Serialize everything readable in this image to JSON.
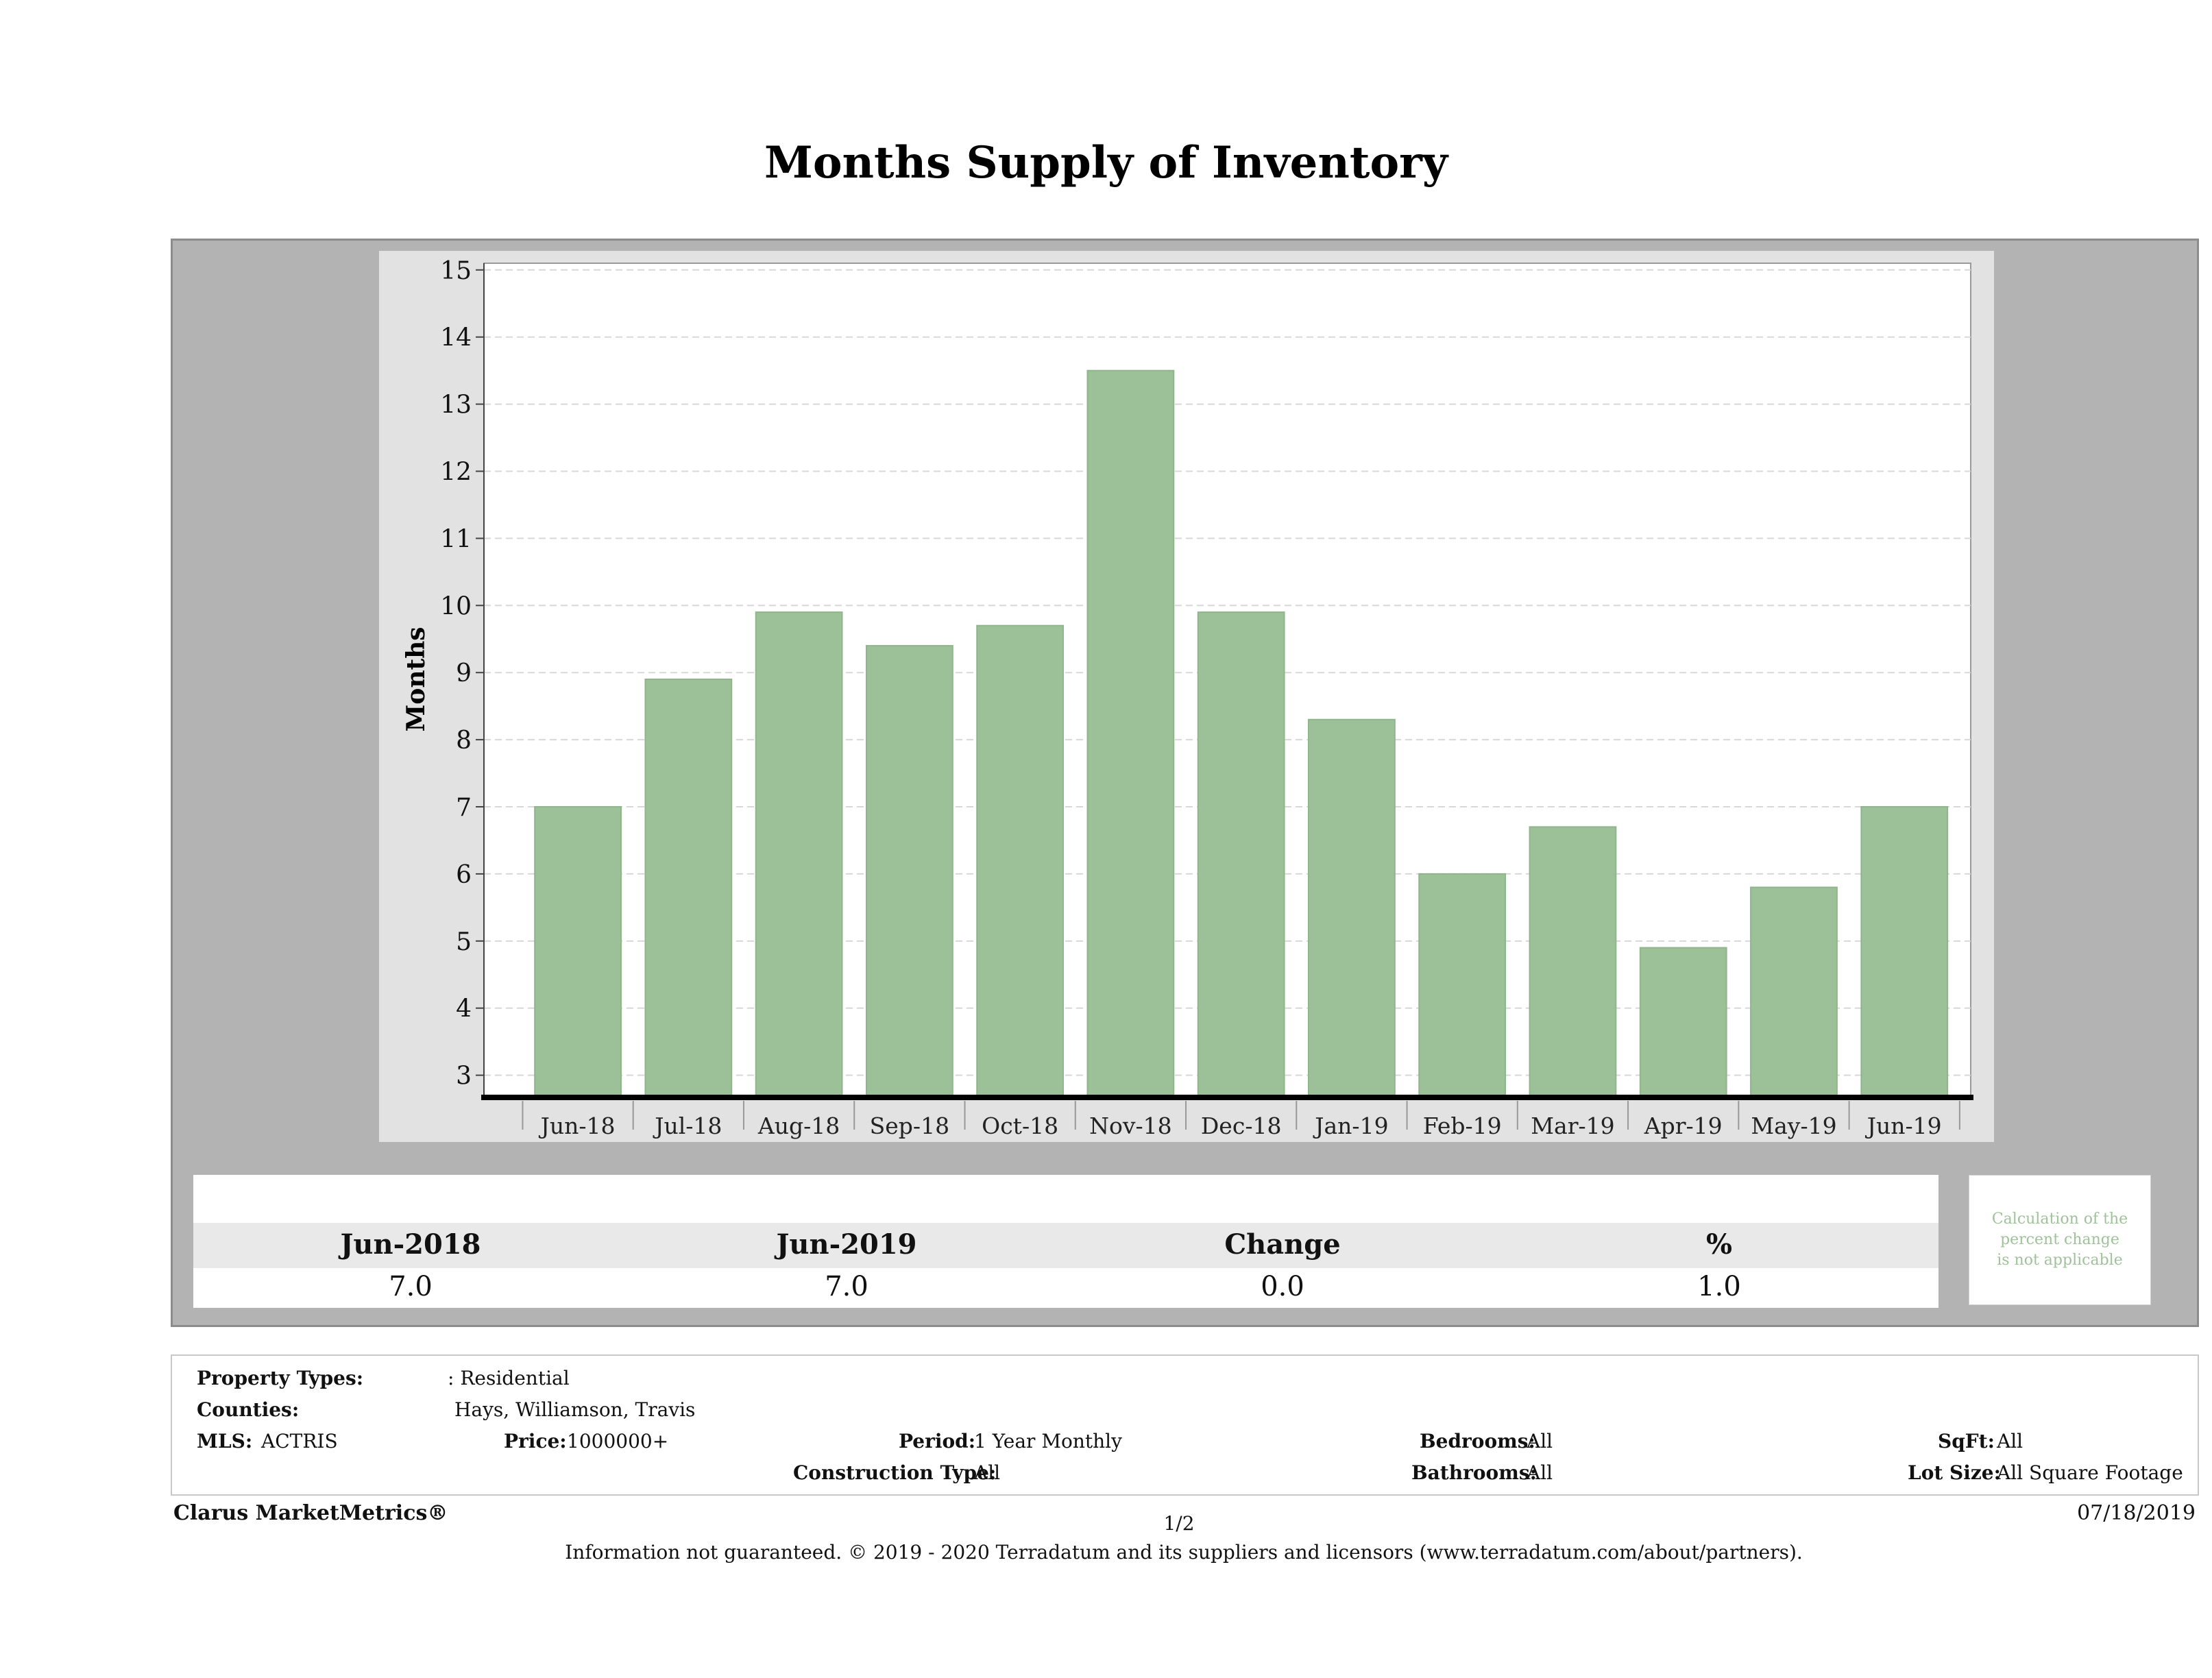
{
  "title": "Months Supply of Inventory",
  "chart_data": {
    "type": "bar",
    "categories": [
      "Jun-18",
      "Jul-18",
      "Aug-18",
      "Sep-18",
      "Oct-18",
      "Nov-18",
      "Dec-18",
      "Jan-19",
      "Feb-19",
      "Mar-19",
      "Apr-19",
      "May-19",
      "Jun-19"
    ],
    "series": [
      {
        "values": [
          7.0,
          8.9,
          9.9,
          9.4,
          9.7,
          13.5,
          9.9,
          8.3,
          6.0,
          6.7,
          4.9,
          5.8,
          7.0
        ]
      }
    ],
    "ylabel": "Months",
    "xlabel": "",
    "ylim": [
      2.7,
      15.1
    ],
    "yticks": [
      3,
      4,
      5,
      6,
      7,
      8,
      9,
      10,
      11,
      12,
      13,
      14,
      15
    ],
    "grid": true,
    "bar_color": "#9cc198"
  },
  "stats": {
    "headers": [
      "Jun-2018",
      "Jun-2019",
      "Change",
      "%"
    ],
    "values": [
      "7.0",
      "7.0",
      "0.0",
      "1.0"
    ],
    "note": [
      "Calculation of the",
      "percent change",
      "is not applicable"
    ]
  },
  "filters": {
    "property_types_label": "Property Types:",
    "property_types_value": ": Residential",
    "counties_label": "Counties:",
    "counties_value": "Hays, Williamson, Travis",
    "mls_label": "MLS:",
    "mls_value": "ACTRIS",
    "price_label": "Price:",
    "price_value": "1000000+",
    "period_label": "Period:",
    "period_value": "1 Year Monthly",
    "construction_label": "Construction Type:",
    "construction_value": "All",
    "bedrooms_label": "Bedrooms:",
    "bedrooms_value": "All",
    "bathrooms_label": "Bathrooms:",
    "bathrooms_value": "All",
    "sqft_label": "SqFt:",
    "sqft_value": "All",
    "lotsize_label": "Lot Size:",
    "lotsize_value": "All Square Footage"
  },
  "footer": {
    "brand": "Clarus MarketMetrics®",
    "page": "1/2",
    "date": "07/18/2019",
    "disclaimer": "Information not guaranteed. © 2019 - 2020 Terradatum and its suppliers and licensors (www.terradatum.com/about/partners)."
  }
}
